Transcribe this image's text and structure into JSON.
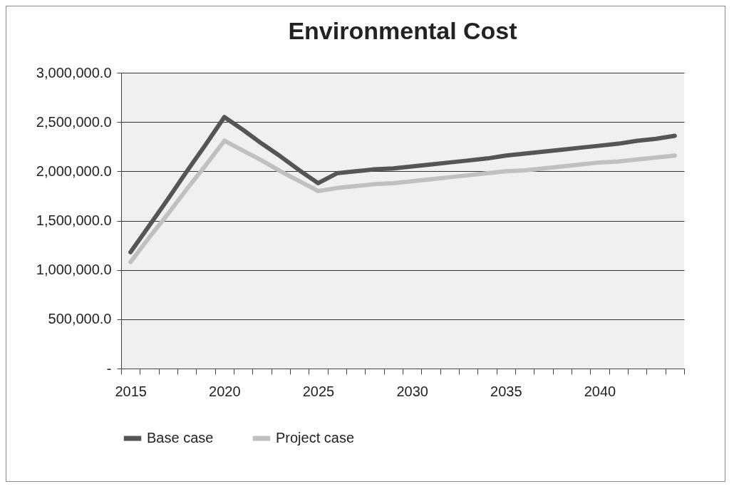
{
  "chart_data": {
    "type": "line",
    "title": "Environmental Cost",
    "categories": [
      "2015",
      null,
      null,
      null,
      null,
      "2020",
      null,
      null,
      null,
      null,
      "2025",
      null,
      null,
      null,
      null,
      "2030",
      null,
      null,
      null,
      null,
      "2035",
      null,
      null,
      null,
      null,
      "2040",
      null,
      null,
      null,
      null
    ],
    "series": [
      {
        "name": "Base case",
        "color": "#555555",
        "values": [
          1180000,
          1450000,
          1720000,
          2000000,
          2270000,
          2550000,
          2420000,
          2280000,
          2150000,
          2010000,
          1880000,
          1980000,
          2000000,
          2020000,
          2030000,
          2050000,
          2070000,
          2090000,
          2110000,
          2130000,
          2160000,
          2180000,
          2200000,
          2220000,
          2240000,
          2260000,
          2280000,
          2310000,
          2330000,
          2360000
        ]
      },
      {
        "name": "Project case",
        "color": "#c0c0c0",
        "values": [
          1080000,
          1330000,
          1570000,
          1820000,
          2060000,
          2310000,
          2210000,
          2110000,
          2000000,
          1900000,
          1800000,
          1830000,
          1850000,
          1870000,
          1880000,
          1900000,
          1920000,
          1940000,
          1960000,
          1980000,
          2000000,
          2010000,
          2030000,
          2050000,
          2070000,
          2090000,
          2100000,
          2120000,
          2140000,
          2160000
        ]
      }
    ],
    "ylim": [
      0,
      3000000
    ],
    "yticks": [
      {
        "value": 0,
        "label": "-"
      },
      {
        "value": 500000,
        "label": "500,000.0"
      },
      {
        "value": 1000000,
        "label": "1,000,000.0"
      },
      {
        "value": 1500000,
        "label": "1,500,000.0"
      },
      {
        "value": 2000000,
        "label": "2,000,000.0"
      },
      {
        "value": 2500000,
        "label": "2,500,000.0"
      },
      {
        "value": 3000000,
        "label": "3,000,000.0"
      }
    ],
    "grid": "y",
    "legend": "bottom",
    "marker": "none",
    "line_style": "solid"
  }
}
